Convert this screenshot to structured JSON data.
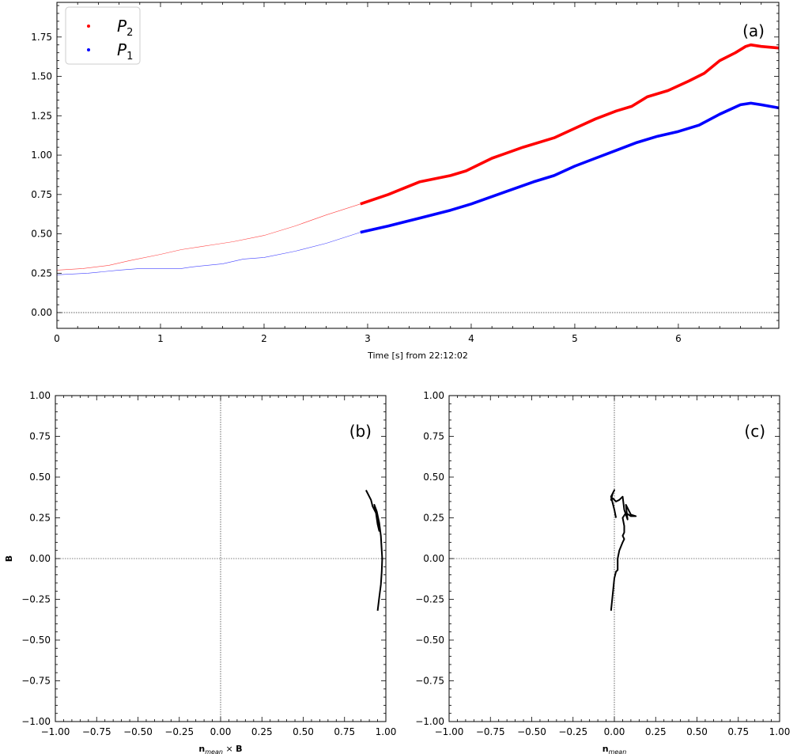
{
  "chart_data": [
    {
      "id": "a",
      "type": "line",
      "panel_label": "(a)",
      "xlabel": "Time [s] from 22:12:02",
      "ylabel": "",
      "xlim": [
        0,
        6.97
      ],
      "ylim": [
        -0.1,
        1.97
      ],
      "xticks": [
        0,
        1,
        2,
        3,
        4,
        5,
        6
      ],
      "yticks": [
        0.0,
        0.25,
        0.5,
        0.75,
        1.0,
        1.25,
        1.5,
        1.75
      ],
      "zero_line": true,
      "legend": {
        "position": "upper-left",
        "entries": [
          {
            "label": "P2",
            "base": "P",
            "sub": "2",
            "color": "#ff0000"
          },
          {
            "label": "P1",
            "base": "P",
            "sub": "1",
            "color": "#0000ff"
          }
        ]
      },
      "thin_end_x": 2.93,
      "series": [
        {
          "name": "P2",
          "color": "#ff0000",
          "points": [
            [
              0.0,
              0.27
            ],
            [
              0.25,
              0.28
            ],
            [
              0.5,
              0.3
            ],
            [
              0.7,
              0.33
            ],
            [
              1.0,
              0.37
            ],
            [
              1.2,
              0.4
            ],
            [
              1.5,
              0.43
            ],
            [
              1.7,
              0.45
            ],
            [
              2.0,
              0.49
            ],
            [
              2.3,
              0.55
            ],
            [
              2.6,
              0.62
            ],
            [
              2.93,
              0.69
            ],
            [
              3.2,
              0.75
            ],
            [
              3.5,
              0.83
            ],
            [
              3.8,
              0.87
            ],
            [
              3.95,
              0.9
            ],
            [
              4.2,
              0.98
            ],
            [
              4.5,
              1.05
            ],
            [
              4.8,
              1.11
            ],
            [
              5.0,
              1.17
            ],
            [
              5.2,
              1.23
            ],
            [
              5.4,
              1.28
            ],
            [
              5.55,
              1.31
            ],
            [
              5.7,
              1.37
            ],
            [
              5.9,
              1.41
            ],
            [
              6.1,
              1.47
            ],
            [
              6.25,
              1.52
            ],
            [
              6.4,
              1.6
            ],
            [
              6.55,
              1.65
            ],
            [
              6.65,
              1.69
            ],
            [
              6.7,
              1.7
            ],
            [
              6.8,
              1.69
            ],
            [
              6.97,
              1.68
            ]
          ]
        },
        {
          "name": "P1",
          "color": "#0000ff",
          "points": [
            [
              0.0,
              0.24
            ],
            [
              0.3,
              0.25
            ],
            [
              0.6,
              0.27
            ],
            [
              0.8,
              0.28
            ],
            [
              1.0,
              0.28
            ],
            [
              1.1,
              0.28
            ],
            [
              1.2,
              0.28
            ],
            [
              1.3,
              0.29
            ],
            [
              1.6,
              0.31
            ],
            [
              1.8,
              0.34
            ],
            [
              2.0,
              0.35
            ],
            [
              2.3,
              0.39
            ],
            [
              2.6,
              0.44
            ],
            [
              2.93,
              0.51
            ],
            [
              3.2,
              0.55
            ],
            [
              3.5,
              0.6
            ],
            [
              3.8,
              0.65
            ],
            [
              4.0,
              0.69
            ],
            [
              4.3,
              0.76
            ],
            [
              4.6,
              0.83
            ],
            [
              4.8,
              0.87
            ],
            [
              5.0,
              0.93
            ],
            [
              5.2,
              0.98
            ],
            [
              5.4,
              1.03
            ],
            [
              5.6,
              1.08
            ],
            [
              5.8,
              1.12
            ],
            [
              6.0,
              1.15
            ],
            [
              6.2,
              1.19
            ],
            [
              6.4,
              1.26
            ],
            [
              6.6,
              1.32
            ],
            [
              6.7,
              1.33
            ],
            [
              6.8,
              1.32
            ],
            [
              6.97,
              1.3
            ]
          ]
        }
      ]
    },
    {
      "id": "b",
      "type": "line",
      "panel_label": "(b)",
      "xlabel": "n_mean × B",
      "xlabel_parts": {
        "bold": "n",
        "sub": "mean",
        "mid": " × ",
        "bold2": "B"
      },
      "ylabel": "B",
      "xlim": [
        -1.0,
        1.0
      ],
      "ylim": [
        -1.0,
        1.0
      ],
      "xticks": [
        -1.0,
        -0.75,
        -0.5,
        -0.25,
        0.0,
        0.25,
        0.5,
        0.75,
        1.0
      ],
      "yticks": [
        -1.0,
        -0.75,
        -0.5,
        -0.25,
        0.0,
        0.25,
        0.5,
        0.75,
        1.0
      ],
      "crosshair": true,
      "series": [
        {
          "name": "",
          "color": "#000000",
          "points": [
            [
              0.88,
              0.42
            ],
            [
              0.91,
              0.36
            ],
            [
              0.92,
              0.32
            ],
            [
              0.94,
              0.28
            ],
            [
              0.95,
              0.21
            ],
            [
              0.96,
              0.17
            ],
            [
              0.955,
              0.22
            ],
            [
              0.945,
              0.26
            ],
            [
              0.935,
              0.3
            ],
            [
              0.93,
              0.33
            ],
            [
              0.945,
              0.29
            ],
            [
              0.96,
              0.22
            ],
            [
              0.97,
              0.14
            ],
            [
              0.975,
              0.05
            ],
            [
              0.978,
              0.0
            ],
            [
              0.975,
              -0.08
            ],
            [
              0.97,
              -0.16
            ],
            [
              0.96,
              -0.24
            ],
            [
              0.95,
              -0.32
            ]
          ]
        }
      ]
    },
    {
      "id": "c",
      "type": "line",
      "panel_label": "(c)",
      "xlabel": "n_mean",
      "xlabel_parts": {
        "bold": "n",
        "sub": "mean",
        "mid": "",
        "bold2": ""
      },
      "ylabel": "",
      "xlim": [
        -1.0,
        1.0
      ],
      "ylim": [
        -1.0,
        1.0
      ],
      "xticks": [
        -1.0,
        -0.75,
        -0.5,
        -0.25,
        0.0,
        0.25,
        0.5,
        0.75,
        1.0
      ],
      "yticks": [
        -1.0,
        -0.75,
        -0.5,
        -0.25,
        0.0,
        0.25,
        0.5,
        0.75,
        1.0
      ],
      "crosshair": true,
      "series": [
        {
          "name": "",
          "color": "#000000",
          "points": [
            [
              -0.02,
              -0.32
            ],
            [
              -0.01,
              -0.22
            ],
            [
              0.0,
              -0.12
            ],
            [
              0.01,
              -0.08
            ],
            [
              0.02,
              -0.07
            ],
            [
              0.02,
              0.0
            ],
            [
              0.03,
              0.05
            ],
            [
              0.05,
              0.1
            ],
            [
              0.06,
              0.12
            ],
            [
              0.05,
              0.14
            ],
            [
              0.06,
              0.16
            ],
            [
              0.06,
              0.2
            ],
            [
              0.05,
              0.25
            ],
            [
              0.07,
              0.28
            ],
            [
              0.1,
              0.26
            ],
            [
              0.13,
              0.26
            ],
            [
              0.1,
              0.27
            ],
            [
              0.08,
              0.31
            ],
            [
              0.07,
              0.33
            ],
            [
              0.08,
              0.24
            ],
            [
              0.06,
              0.3
            ],
            [
              0.05,
              0.38
            ],
            [
              0.03,
              0.36
            ],
            [
              0.01,
              0.35
            ],
            [
              -0.01,
              0.37
            ],
            [
              -0.02,
              0.36
            ],
            [
              -0.01,
              0.4
            ],
            [
              0.0,
              0.42
            ],
            [
              -0.02,
              0.38
            ],
            [
              0.0,
              0.3
            ],
            [
              0.01,
              0.25
            ]
          ]
        }
      ]
    }
  ]
}
